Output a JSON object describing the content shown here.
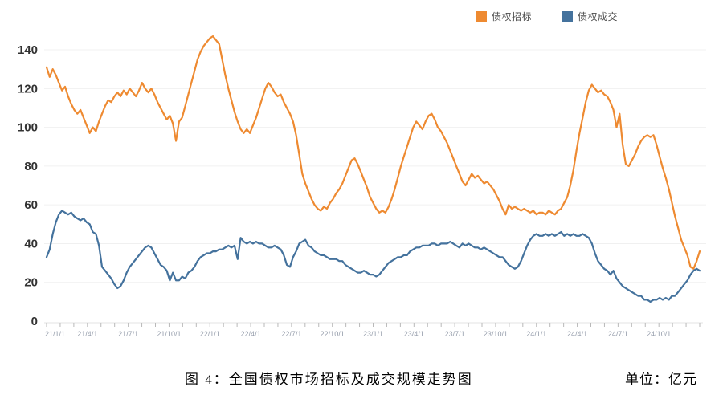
{
  "legend": {
    "items": [
      {
        "label": "债权招标",
        "color": "#EE8A31"
      },
      {
        "label": "债权成交",
        "color": "#44729D"
      }
    ]
  },
  "caption": "图 4：全国债权市场招标及成交规模走势图",
  "unit_label": "单位：亿元",
  "chart_data": {
    "type": "line",
    "title": "全国债权市场招标及成交规模走势图",
    "unit": "亿元",
    "grid": "horizontal",
    "legend_position": "top",
    "ylim": [
      0,
      150
    ],
    "y_ticks": [
      0,
      20,
      40,
      60,
      80,
      100,
      120,
      140
    ],
    "x_tick_labels": [
      "21/1/1",
      "21/4/1",
      "21/7/1",
      "21/10/1",
      "22/1/1",
      "22/4/1",
      "22/7/1",
      "22/10/1",
      "23/1/1",
      "23/4/1",
      "23/7/1",
      "23/10/1",
      "24/1/1",
      "24/4/1",
      "24/7/1",
      "24/10/1"
    ],
    "x_unit": "weeks from 21/1/1 (≈4 years, data to ≈25/1)",
    "months_span": 48,
    "series": [
      {
        "name": "债权招标",
        "color": "#EE8A31",
        "values": [
          131,
          126,
          130,
          127,
          123,
          119,
          121,
          116,
          112,
          109,
          107,
          109,
          105,
          101,
          97,
          100,
          98,
          103,
          107,
          111,
          114,
          113,
          116,
          118,
          116,
          119,
          117,
          120,
          118,
          116,
          119,
          123,
          120,
          118,
          120,
          117,
          113,
          110,
          107,
          104,
          106,
          102,
          93,
          103,
          105,
          111,
          117,
          123,
          129,
          135,
          139,
          142,
          144,
          146,
          147,
          145,
          143,
          135,
          127,
          120,
          114,
          108,
          103,
          99,
          97,
          99,
          97,
          101,
          105,
          110,
          115,
          120,
          123,
          121,
          118,
          116,
          117,
          113,
          110,
          107,
          103,
          96,
          86,
          76,
          71,
          67,
          63,
          60,
          58,
          57,
          59,
          58,
          61,
          63,
          66,
          68,
          71,
          75,
          79,
          83,
          84,
          81,
          77,
          73,
          69,
          64,
          61,
          58,
          56,
          57,
          56,
          59,
          63,
          68,
          74,
          80,
          85,
          90,
          95,
          100,
          103,
          101,
          99,
          103,
          106,
          107,
          104,
          100,
          98,
          95,
          92,
          88,
          84,
          80,
          76,
          72,
          70,
          73,
          76,
          74,
          75,
          73,
          71,
          72,
          70,
          68,
          65,
          62,
          58,
          55,
          60,
          58,
          59,
          58,
          57,
          58,
          57,
          56,
          57,
          55,
          56,
          56,
          55,
          57,
          56,
          55,
          57,
          58,
          61,
          64,
          70,
          78,
          88,
          97,
          105,
          113,
          119,
          122,
          120,
          118,
          119,
          117,
          116,
          113,
          109,
          100,
          107,
          91,
          81,
          80,
          83,
          86,
          90,
          93,
          95,
          96,
          95,
          96,
          91,
          85,
          79,
          74,
          68,
          61,
          54,
          48,
          42,
          38,
          34,
          28,
          27,
          31,
          36
        ]
      },
      {
        "name": "债权成交",
        "color": "#44729D",
        "values": [
          33,
          37,
          45,
          51,
          55,
          57,
          56,
          55,
          56,
          54,
          53,
          52,
          53,
          51,
          50,
          46,
          45,
          39,
          28,
          26,
          24,
          22,
          19,
          17,
          18,
          21,
          25,
          28,
          30,
          32,
          34,
          36,
          38,
          39,
          38,
          35,
          32,
          29,
          28,
          26,
          21,
          25,
          21,
          21,
          23,
          22,
          25,
          26,
          28,
          31,
          33,
          34,
          35,
          35,
          36,
          36,
          37,
          37,
          38,
          39,
          38,
          39,
          32,
          43,
          41,
          40,
          41,
          40,
          41,
          40,
          40,
          39,
          38,
          38,
          39,
          38,
          37,
          34,
          29,
          28,
          33,
          36,
          40,
          41,
          42,
          39,
          38,
          36,
          35,
          34,
          34,
          33,
          32,
          32,
          32,
          31,
          31,
          29,
          28,
          27,
          26,
          25,
          25,
          26,
          25,
          24,
          24,
          23,
          24,
          26,
          28,
          30,
          31,
          32,
          33,
          33,
          34,
          34,
          36,
          37,
          38,
          38,
          39,
          39,
          39,
          40,
          40,
          39,
          40,
          40,
          40,
          41,
          40,
          39,
          38,
          40,
          39,
          40,
          39,
          38,
          38,
          37,
          38,
          37,
          36,
          35,
          34,
          33,
          33,
          31,
          29,
          28,
          27,
          28,
          31,
          35,
          39,
          42,
          44,
          45,
          44,
          44,
          45,
          44,
          45,
          44,
          45,
          46,
          44,
          45,
          44,
          45,
          44,
          44,
          45,
          44,
          43,
          40,
          35,
          31,
          29,
          27,
          26,
          24,
          26,
          22,
          20,
          18,
          17,
          16,
          15,
          14,
          13,
          13,
          11,
          11,
          10,
          11,
          11,
          12,
          11,
          12,
          11,
          13,
          13,
          15,
          17,
          19,
          21,
          24,
          26,
          27,
          26
        ]
      }
    ]
  }
}
